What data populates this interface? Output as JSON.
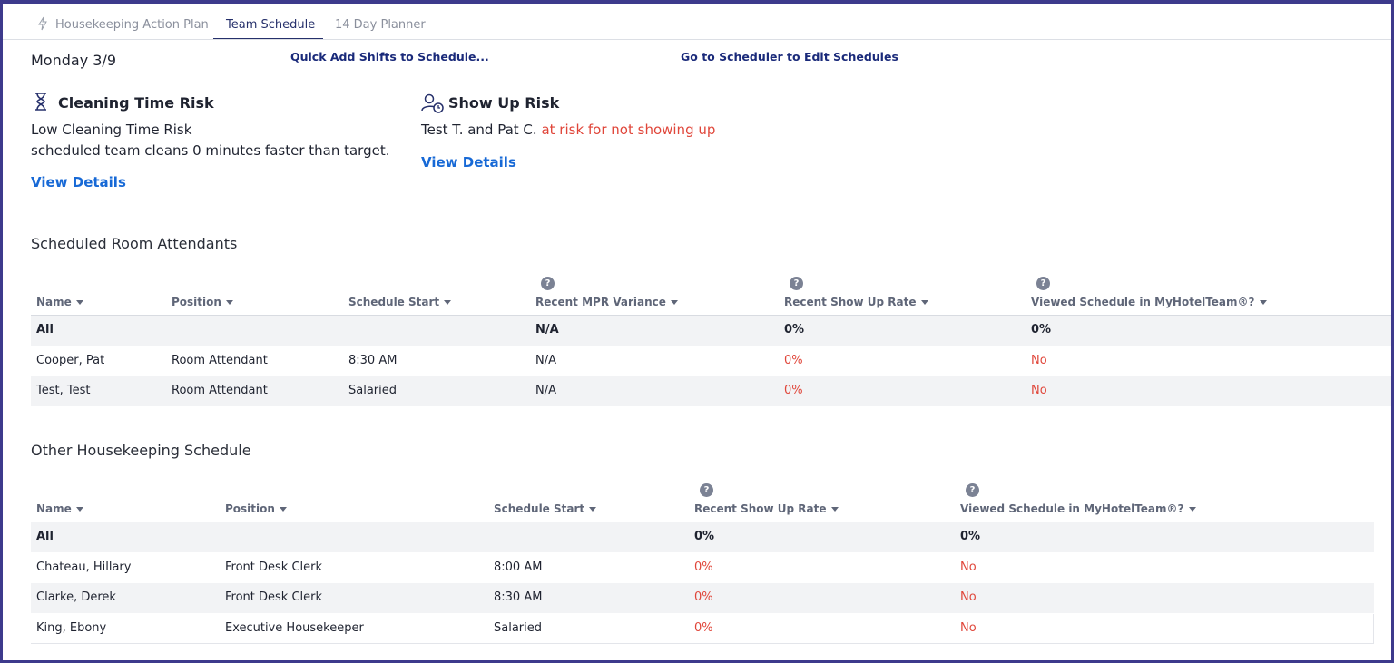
{
  "tabs": [
    "Housekeeping Action Plan",
    "Team Schedule",
    "14 Day Planner"
  ],
  "date": "Monday 3/9",
  "links": {
    "quick_add": "Quick Add Shifts to Schedule...",
    "scheduler": "Go to Scheduler to Edit Schedules"
  },
  "cleaning_risk": {
    "title": "Cleaning Time Risk",
    "status": "Low Cleaning Time Risk",
    "detail": "scheduled team cleans 0 minutes faster than target.",
    "link": "View Details"
  },
  "show_up_risk": {
    "title": "Show Up Risk",
    "names": "Test T. and Pat C.",
    "warning": "at risk for not showing up",
    "link": "View Details"
  },
  "tables": [
    {
      "title": "Scheduled Room Attendants",
      "columns": [
        {
          "label": "Name"
        },
        {
          "label": "Position"
        },
        {
          "label": "Schedule Start"
        },
        {
          "label": "Recent MPR Variance",
          "help": "?"
        },
        {
          "label": "Recent Show Up Rate",
          "help": "?"
        },
        {
          "label": "Viewed Schedule in MyHotelTeam®?",
          "help": "?"
        }
      ],
      "rows": [
        [
          "All",
          "",
          "",
          "N/A",
          "0%",
          "0%"
        ],
        [
          "Cooper, Pat",
          "Room Attendant",
          "8:30 AM",
          "N/A",
          "0%",
          "No"
        ],
        [
          "Test, Test",
          "Room Attendant",
          "Salaried",
          "N/A",
          "0%",
          "No"
        ]
      ]
    },
    {
      "title": "Other Housekeeping Schedule",
      "columns": [
        {
          "label": "Name"
        },
        {
          "label": "Position"
        },
        {
          "label": "Schedule Start"
        },
        {
          "label": "Recent Show Up Rate",
          "help": "?"
        },
        {
          "label": "Viewed Schedule in MyHotelTeam®?",
          "help": "?"
        }
      ],
      "rows": [
        [
          "All",
          "",
          "",
          "0%",
          "0%"
        ],
        [
          "Chateau, Hillary",
          "Front Desk Clerk",
          "8:00 AM",
          "0%",
          "No"
        ],
        [
          "Clarke, Derek",
          "Front Desk Clerk",
          "8:30 AM",
          "0%",
          "No"
        ],
        [
          "King, Ebony",
          "Executive Housekeeper",
          "Salaried",
          "0%",
          "No"
        ]
      ]
    }
  ]
}
